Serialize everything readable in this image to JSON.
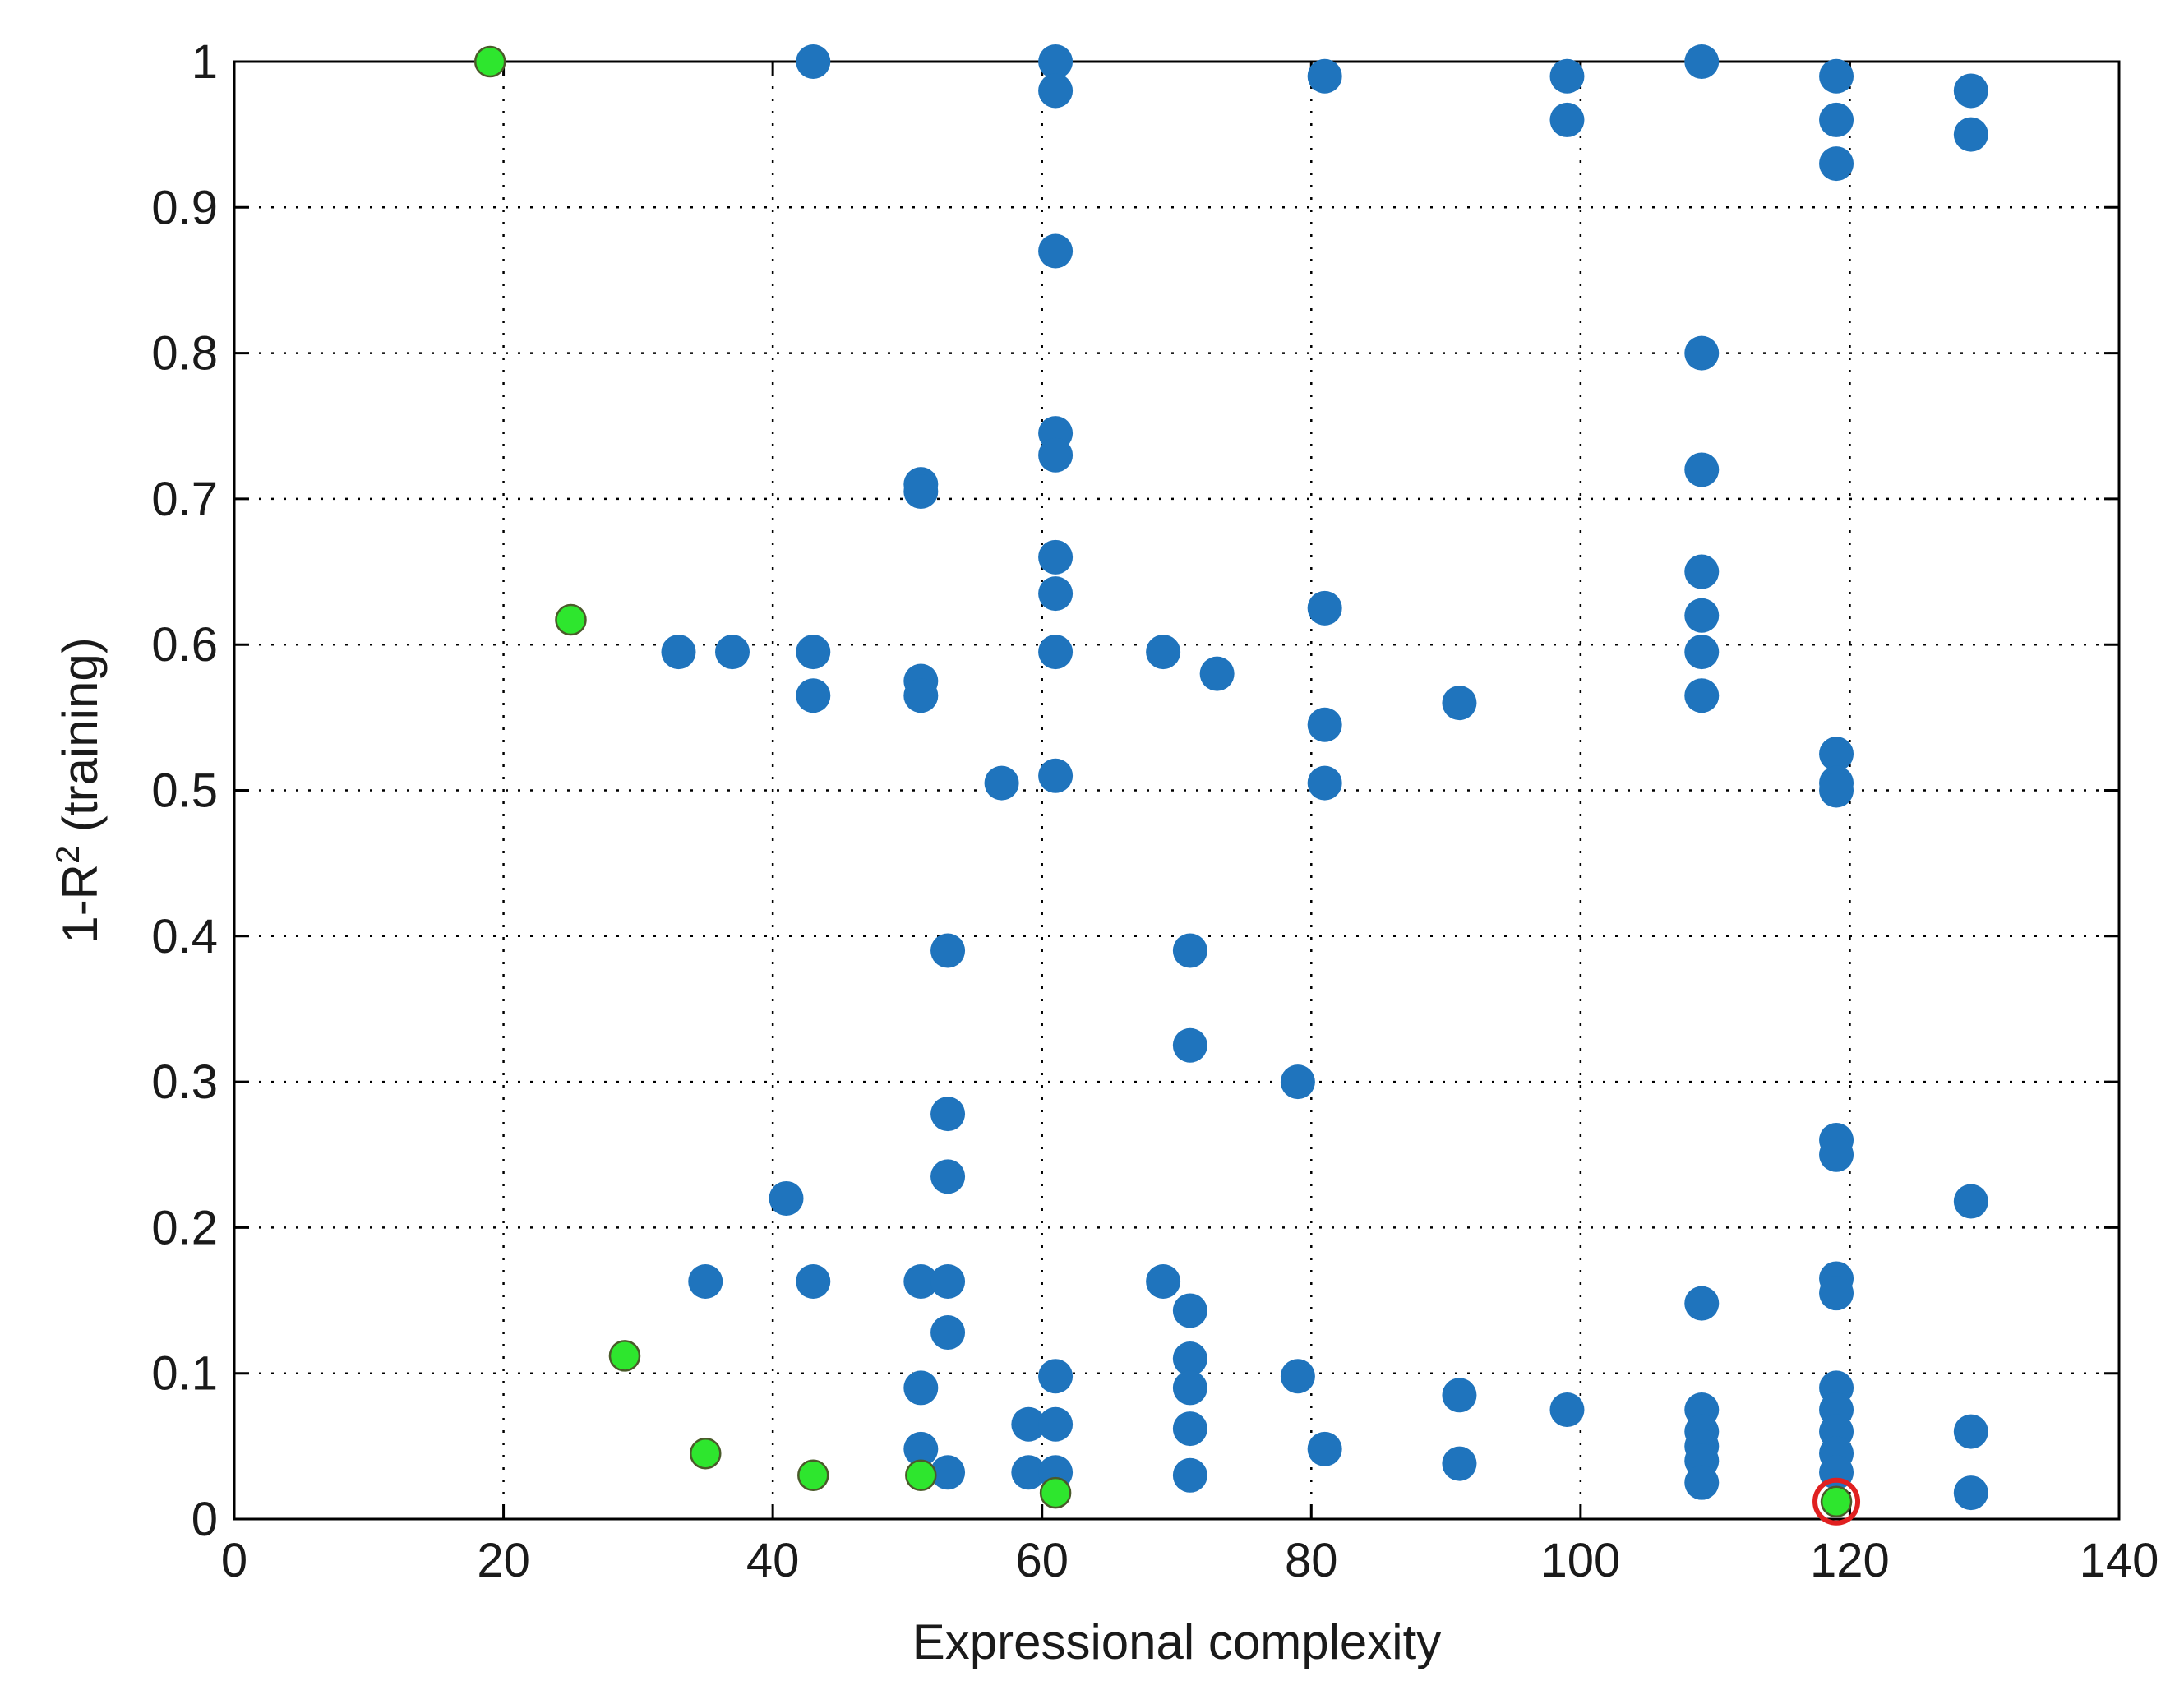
{
  "chart_data": {
    "type": "scatter",
    "title": "",
    "xlabel": "Expressional complexity",
    "ylabel_prefix": "1-R",
    "ylabel_superscript": "2",
    "ylabel_suffix": " (training)",
    "xlim": [
      0,
      140
    ],
    "ylim": [
      0,
      1
    ],
    "xticks": [
      "0",
      "20",
      "40",
      "60",
      "80",
      "100",
      "120",
      "140"
    ],
    "yticks": [
      "0",
      "0.1",
      "0.2",
      "0.3",
      "0.4",
      "0.5",
      "0.6",
      "0.7",
      "0.8",
      "0.9",
      "1"
    ],
    "grid": true,
    "legend": "none",
    "colors": {
      "models": "#1f74bd",
      "pareto_front": "#2ee62e",
      "pareto_outline": "#4a5a2a",
      "selected_outline": "#e02020"
    },
    "series": [
      {
        "role": "models",
        "points": [
          [
            43,
            1.0
          ],
          [
            61,
            1.0
          ],
          [
            61,
            0.98
          ],
          [
            81,
            0.99
          ],
          [
            99,
            0.99
          ],
          [
            99,
            0.96
          ],
          [
            109,
            1.0
          ],
          [
            119,
            0.99
          ],
          [
            119,
            0.96
          ],
          [
            119,
            0.93
          ],
          [
            129,
            0.98
          ],
          [
            129,
            0.95
          ],
          [
            61,
            0.87
          ],
          [
            109,
            0.8
          ],
          [
            61,
            0.745
          ],
          [
            61,
            0.73
          ],
          [
            51,
            0.71
          ],
          [
            51,
            0.705
          ],
          [
            109,
            0.72
          ],
          [
            61,
            0.66
          ],
          [
            61,
            0.635
          ],
          [
            61,
            0.595
          ],
          [
            109,
            0.65
          ],
          [
            109,
            0.62
          ],
          [
            109,
            0.595
          ],
          [
            109,
            0.565
          ],
          [
            33,
            0.595
          ],
          [
            37,
            0.595
          ],
          [
            43,
            0.595
          ],
          [
            43,
            0.565
          ],
          [
            51,
            0.575
          ],
          [
            51,
            0.565
          ],
          [
            69,
            0.595
          ],
          [
            73,
            0.58
          ],
          [
            81,
            0.625
          ],
          [
            91,
            0.56
          ],
          [
            81,
            0.545
          ],
          [
            81,
            0.505
          ],
          [
            57,
            0.505
          ],
          [
            61,
            0.51
          ],
          [
            119,
            0.525
          ],
          [
            119,
            0.505
          ],
          [
            119,
            0.5
          ],
          [
            53,
            0.39
          ],
          [
            71,
            0.39
          ],
          [
            71,
            0.325
          ],
          [
            79,
            0.3
          ],
          [
            53,
            0.278
          ],
          [
            53,
            0.235
          ],
          [
            41,
            0.22
          ],
          [
            119,
            0.26
          ],
          [
            119,
            0.25
          ],
          [
            129,
            0.218
          ],
          [
            35,
            0.163
          ],
          [
            43,
            0.163
          ],
          [
            51,
            0.163
          ],
          [
            53,
            0.163
          ],
          [
            69,
            0.163
          ],
          [
            71,
            0.143
          ],
          [
            53,
            0.128
          ],
          [
            119,
            0.165
          ],
          [
            119,
            0.155
          ],
          [
            109,
            0.148
          ],
          [
            51,
            0.09
          ],
          [
            61,
            0.098
          ],
          [
            71,
            0.11
          ],
          [
            71,
            0.09
          ],
          [
            79,
            0.098
          ],
          [
            91,
            0.085
          ],
          [
            99,
            0.075
          ],
          [
            109,
            0.075
          ],
          [
            119,
            0.09
          ],
          [
            119,
            0.075
          ],
          [
            59,
            0.065
          ],
          [
            61,
            0.065
          ],
          [
            71,
            0.062
          ],
          [
            51,
            0.048
          ],
          [
            81,
            0.048
          ],
          [
            91,
            0.038
          ],
          [
            109,
            0.06
          ],
          [
            109,
            0.05
          ],
          [
            109,
            0.04
          ],
          [
            109,
            0.025
          ],
          [
            119,
            0.06
          ],
          [
            119,
            0.045
          ],
          [
            119,
            0.032
          ],
          [
            129,
            0.06
          ],
          [
            129,
            0.018
          ],
          [
            53,
            0.032
          ],
          [
            59,
            0.032
          ],
          [
            61,
            0.032
          ],
          [
            71,
            0.03
          ]
        ]
      },
      {
        "role": "pareto_front",
        "points": [
          [
            19,
            1.0
          ],
          [
            25,
            0.617
          ],
          [
            29,
            0.112
          ],
          [
            35,
            0.045
          ],
          [
            43,
            0.03
          ],
          [
            51,
            0.03
          ],
          [
            61,
            0.018
          ],
          [
            119,
            0.012
          ]
        ]
      }
    ],
    "selected_point": [
      119,
      0.012
    ]
  }
}
